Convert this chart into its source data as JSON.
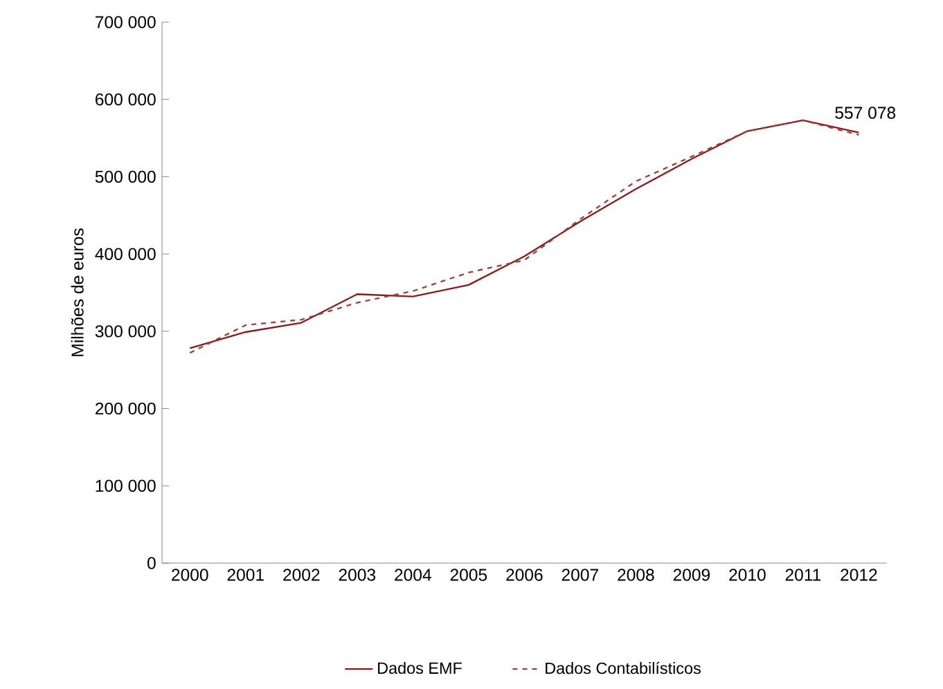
{
  "chart_data": {
    "type": "line",
    "ylabel": "Milhões de euros",
    "categories": [
      "2000",
      "2001",
      "2002",
      "2003",
      "2004",
      "2005",
      "2006",
      "2007",
      "2008",
      "2009",
      "2010",
      "2011",
      "2012"
    ],
    "series": [
      {
        "name": "Dados EMF",
        "color": "#8b1a1a",
        "line_style": "solid",
        "values": [
          278000,
          299000,
          311000,
          348000,
          345000,
          360000,
          397000,
          442000,
          484000,
          523000,
          559000,
          573000,
          557078
        ],
        "value_labels": [
          null,
          null,
          null,
          null,
          null,
          null,
          null,
          null,
          null,
          null,
          null,
          null,
          "557 078"
        ]
      },
      {
        "name": "Dados Contabilísticos",
        "color": "#9b4040",
        "line_style": "dashed",
        "values": [
          272000,
          308000,
          315000,
          337000,
          352000,
          376000,
          392000,
          445000,
          494000,
          526000,
          559000,
          573000,
          554000
        ]
      }
    ],
    "ylim": [
      0,
      700000
    ],
    "yticks": [
      0,
      {
        "value": 100000,
        "label": "100 000"
      },
      {
        "value": 200000,
        "label": "200 000"
      },
      {
        "value": 300000,
        "label": "300 000"
      },
      {
        "value": 400000,
        "label": "400 000"
      },
      {
        "value": 500000,
        "label": "500 000"
      },
      {
        "value": 600000,
        "label": "600 000"
      },
      {
        "value": 700000,
        "label": "700 000"
      }
    ],
    "grid": false,
    "legend": "bottom",
    "marker": "none"
  }
}
